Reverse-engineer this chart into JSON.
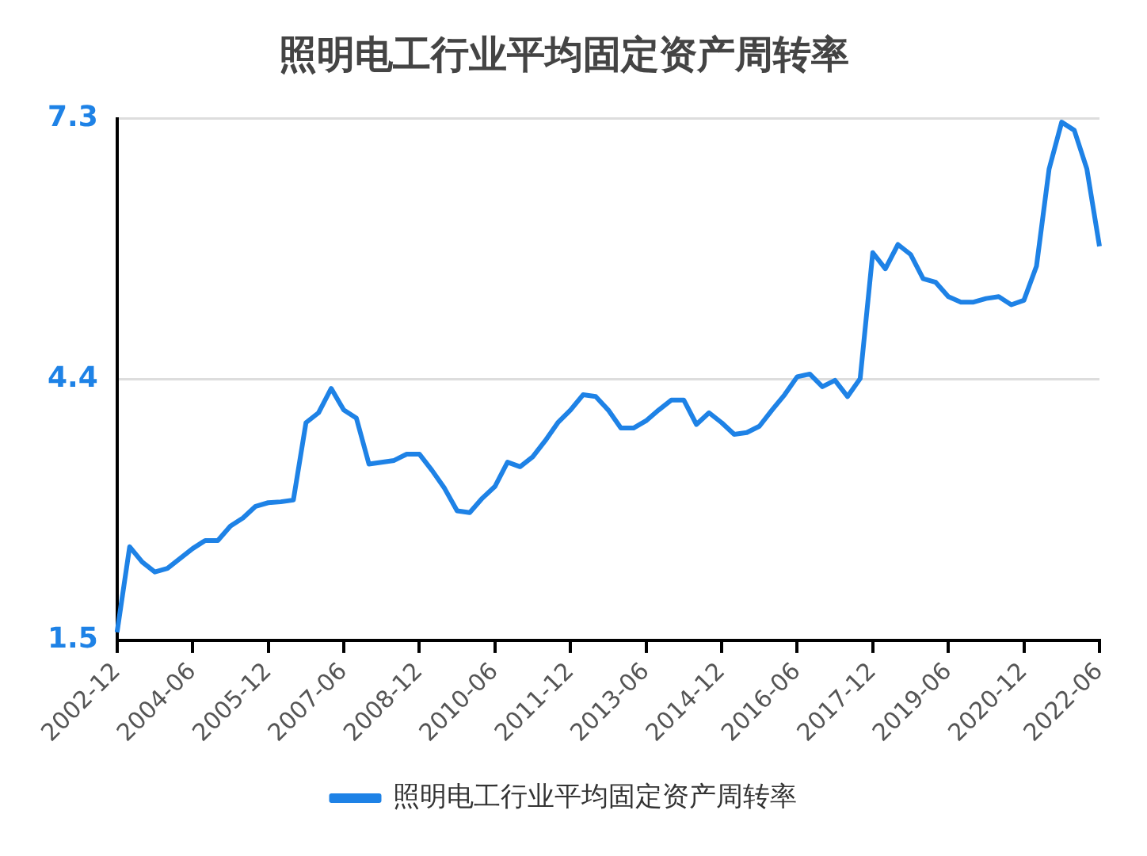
{
  "chart_data": {
    "type": "line",
    "title": "照明电工行业平均固定资产周转率",
    "categories": [
      "2002-12",
      null,
      null,
      null,
      null,
      null,
      "2004-06",
      null,
      null,
      null,
      null,
      null,
      "2005-12",
      null,
      null,
      null,
      null,
      null,
      "2007-06",
      null,
      null,
      null,
      null,
      null,
      "2008-12",
      null,
      null,
      null,
      null,
      null,
      "2010-06",
      null,
      null,
      null,
      null,
      null,
      "2011-12",
      null,
      null,
      null,
      null,
      null,
      "2013-06",
      null,
      null,
      null,
      null,
      null,
      "2014-12",
      null,
      null,
      null,
      null,
      null,
      "2016-06",
      null,
      null,
      null,
      null,
      null,
      "2017-12",
      null,
      null,
      null,
      null,
      null,
      "2019-06",
      null,
      null,
      null,
      null,
      null,
      "2020-12",
      null,
      null,
      null,
      null,
      null,
      "2022-06"
    ],
    "series": [
      {
        "name": "照明电工行业平均固定资产周转率",
        "color": "#1e82e6",
        "values": [
          1.59,
          2.54,
          2.37,
          2.26,
          2.3,
          2.41,
          2.52,
          2.61,
          2.61,
          2.77,
          2.86,
          2.99,
          3.03,
          3.04,
          3.06,
          3.92,
          4.03,
          4.3,
          4.06,
          3.97,
          3.46,
          3.48,
          3.5,
          3.57,
          3.57,
          3.39,
          3.19,
          2.94,
          2.92,
          3.08,
          3.21,
          3.48,
          3.43,
          3.54,
          3.72,
          3.92,
          4.06,
          4.23,
          4.21,
          4.06,
          3.86,
          3.86,
          3.94,
          4.06,
          4.17,
          4.17,
          3.9,
          4.03,
          3.92,
          3.79,
          3.81,
          3.88,
          4.06,
          4.23,
          4.43,
          4.46,
          4.32,
          4.39,
          4.21,
          4.41,
          5.81,
          5.63,
          5.9,
          5.79,
          5.52,
          5.48,
          5.32,
          5.26,
          5.26,
          5.3,
          5.32,
          5.23,
          5.28,
          5.66,
          6.74,
          7.26,
          7.17,
          6.74,
          5.88
        ]
      }
    ],
    "ylim": [
      1.5,
      7.3
    ],
    "yticks": [
      1.5,
      4.4,
      7.3
    ],
    "grid": "y",
    "legend": "bottom",
    "marker": "none",
    "line_style": "solid"
  }
}
